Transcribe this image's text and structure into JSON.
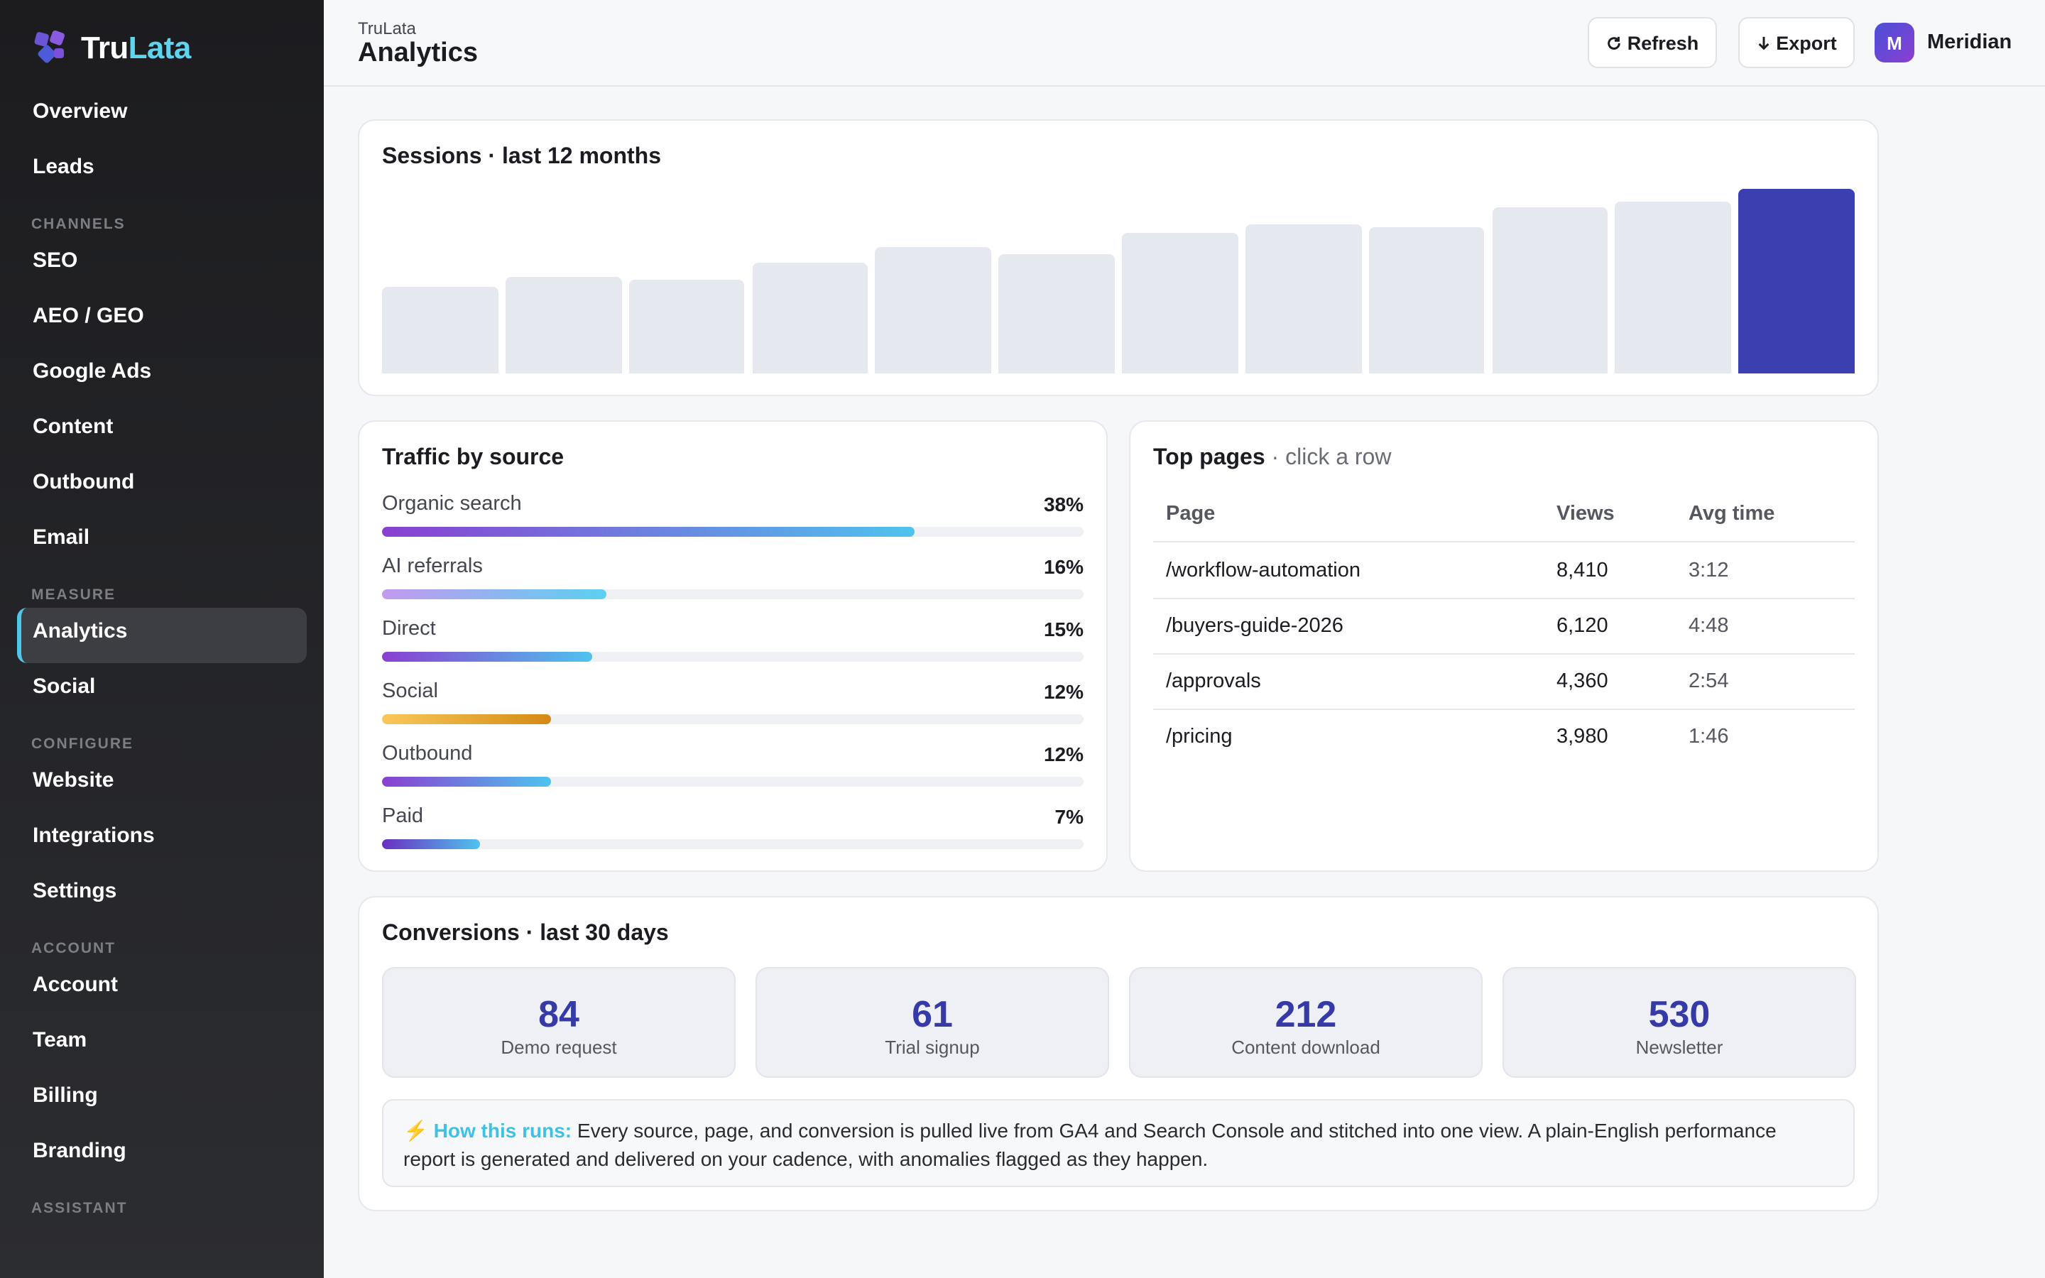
{
  "sidebar": {
    "logo": [
      "Tru",
      "Lata"
    ],
    "groups": [
      {
        "label": null,
        "items": [
          "Overview",
          "Leads"
        ]
      },
      {
        "label": "CHANNELS",
        "items": [
          "SEO",
          "AEO / GEO",
          "Google Ads",
          "Content",
          "Outbound",
          "Email"
        ]
      },
      {
        "label": "MEASURE",
        "items": [
          "Analytics",
          "Social"
        ]
      },
      {
        "label": "CONFIGURE",
        "items": [
          "Website",
          "Integrations",
          "Settings"
        ]
      },
      {
        "label": "ACCOUNT",
        "items": [
          "Account",
          "Team",
          "Billing",
          "Branding"
        ]
      },
      {
        "label": "ASSISTANT",
        "items": []
      }
    ],
    "active": "Analytics"
  },
  "header": {
    "breadcrumb": "TruLata",
    "title": "Analytics",
    "buttons": [
      "Refresh",
      "Export"
    ],
    "avatar": "M",
    "user": "Meridian"
  },
  "chart_data": [
    {
      "type": "bar",
      "title": "Sessions · last 12 months",
      "values": [
        66,
        74,
        72,
        85,
        96,
        91,
        107,
        114,
        112,
        127,
        131,
        141
      ],
      "colors": [
        "#e6e8f0",
        "#e6e8f0",
        "#e6e8f0",
        "#e6e8f0",
        "#e6e8f0",
        "#e6e8f0",
        "#e6e8f0",
        "#e6e8f0",
        "#e6e8f0",
        "#e6e8f0",
        "#e6e8f0",
        "#3b3fb0"
      ]
    },
    {
      "type": "hbar",
      "title": "Traffic by source",
      "categories": [
        "Organic search",
        "AI referrals",
        "Direct",
        "Social",
        "Outbound",
        "Paid"
      ],
      "values": [
        38,
        16,
        15,
        12,
        12,
        7
      ],
      "value_labels": [
        "38%",
        "16%",
        "15%",
        "12%",
        "12%",
        "7%"
      ],
      "xlim": [
        0,
        50
      ],
      "colors": [
        [
          "#8a3fd1",
          "#4fc3ee"
        ],
        [
          "#c39af0",
          "#5cd0f0"
        ],
        [
          "#8a3fd1",
          "#4fc3ee"
        ],
        [
          "#f9c85a",
          "#d48a14"
        ],
        [
          "#8a3fd1",
          "#4fc3ee"
        ],
        [
          "#6a2fc0",
          "#4fc3ee"
        ]
      ]
    }
  ],
  "top_pages": {
    "title": "Top pages",
    "subtitle": " · click a row",
    "columns": [
      "Page",
      "Views",
      "Avg time"
    ],
    "rows": [
      [
        "/workflow-automation",
        "8,410",
        "3:12"
      ],
      [
        "/buyers-guide-2026",
        "6,120",
        "4:48"
      ],
      [
        "/approvals",
        "4,360",
        "2:54"
      ],
      [
        "/pricing",
        "3,980",
        "1:46"
      ]
    ]
  },
  "conversions": {
    "title": "Conversions · last 30 days",
    "tiles": [
      {
        "value": "84",
        "label": "Demo request"
      },
      {
        "value": "61",
        "label": "Trial signup"
      },
      {
        "value": "212",
        "label": "Content download"
      },
      {
        "value": "530",
        "label": "Newsletter"
      }
    ]
  },
  "note": {
    "lead": "How this runs:",
    "text": " Every source, page, and conversion is pulled live from GA4 and Search Console and stitched into one view. A plain-English performance report is generated and delivered on your cadence, with anomalies flagged as they happen."
  }
}
